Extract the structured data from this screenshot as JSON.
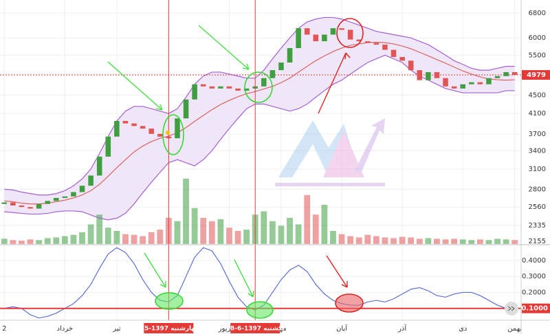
{
  "chart_data": [
    {
      "type": "candlestick",
      "categories": [
        "2",
        null,
        null,
        null,
        null,
        null,
        null,
        "خرداد",
        null,
        null,
        null,
        null,
        null,
        "تیر",
        null,
        null,
        null,
        null,
        null,
        null,
        null,
        null,
        null,
        null,
        null,
        null,
        "شهریور",
        null,
        null,
        null,
        null,
        null,
        "مهر",
        null,
        null,
        null,
        null,
        null,
        null,
        "آبان",
        null,
        null,
        null,
        null,
        null,
        null,
        "آذر",
        null,
        null,
        null,
        null,
        null,
        null,
        "دی",
        null,
        null,
        null,
        null,
        null,
        "بهمن"
      ],
      "open": [
        2600,
        2620,
        2580,
        2560,
        2540,
        2600,
        2640,
        2680,
        2700,
        2760,
        2850,
        3000,
        3300,
        3650,
        3950,
        3900,
        3850,
        3800,
        3700,
        3650,
        3620,
        4000,
        4400,
        4750,
        4700,
        4650,
        4700,
        4650,
        4600,
        4650,
        4700,
        4900,
        5100,
        5300,
        5700,
        6300,
        6100,
        5900,
        6100,
        6300,
        6250,
        5950,
        5900,
        5850,
        5800,
        5650,
        5450,
        5350,
        5100,
        4850,
        5050,
        4900,
        4700,
        4650,
        4750,
        4800,
        4750,
        4900,
        4950,
        5050
      ],
      "close": [
        2620,
        2580,
        2560,
        2540,
        2600,
        2640,
        2680,
        2700,
        2760,
        2850,
        3000,
        3300,
        3650,
        3950,
        3900,
        3850,
        3800,
        3700,
        3650,
        3620,
        4000,
        4400,
        4750,
        4700,
        4650,
        4700,
        4650,
        4600,
        4650,
        4700,
        4900,
        5100,
        5300,
        5700,
        6300,
        6100,
        5900,
        6100,
        6300,
        6250,
        5950,
        5900,
        5850,
        5800,
        5650,
        5450,
        5350,
        5100,
        4850,
        5050,
        4900,
        4700,
        4650,
        4750,
        4800,
        4750,
        4900,
        4950,
        5050,
        4979
      ],
      "up_color": "#3f9e3f",
      "down_color": "#e25555",
      "bands": {
        "upper": [
          2800,
          2790,
          2760,
          2740,
          2720,
          2720,
          2740,
          2780,
          2850,
          2950,
          3100,
          3350,
          3650,
          3950,
          4150,
          4250,
          4250,
          4200,
          4150,
          4100,
          4200,
          4450,
          4750,
          4950,
          5050,
          5050,
          5000,
          4950,
          4900,
          4900,
          5100,
          5400,
          5700,
          6000,
          6300,
          6500,
          6600,
          6650,
          6650,
          6600,
          6500,
          6400,
          6300,
          6200,
          6150,
          6100,
          6050,
          6000,
          5900,
          5800,
          5650,
          5500,
          5350,
          5250,
          5150,
          5100,
          5100,
          5150,
          5200,
          5200
        ],
        "middle": [
          2640,
          2630,
          2610,
          2600,
          2600,
          2610,
          2630,
          2650,
          2680,
          2720,
          2780,
          2870,
          2990,
          3120,
          3250,
          3380,
          3480,
          3560,
          3620,
          3660,
          3720,
          3820,
          3940,
          4060,
          4180,
          4290,
          4380,
          4460,
          4530,
          4580,
          4640,
          4700,
          4790,
          4900,
          5050,
          5200,
          5350,
          5480,
          5600,
          5700,
          5780,
          5820,
          5860,
          5870,
          5860,
          5820,
          5760,
          5680,
          5580,
          5480,
          5380,
          5280,
          5180,
          5080,
          5000,
          4930,
          4880,
          4860,
          4850,
          4860
        ],
        "lower": [
          2500,
          2490,
          2480,
          2470,
          2470,
          2480,
          2500,
          2510,
          2510,
          2500,
          2460,
          2420,
          2400,
          2420,
          2480,
          2600,
          2750,
          2900,
          3050,
          3200,
          3250,
          3200,
          3150,
          3250,
          3400,
          3600,
          3800,
          4000,
          4200,
          4300,
          4300,
          4250,
          4200,
          4150,
          4200,
          4300,
          4450,
          4600,
          4750,
          4850,
          5000,
          5150,
          5300,
          5400,
          5500,
          5400,
          5300,
          5100,
          4950,
          4850,
          4750,
          4650,
          4600,
          4550,
          4550,
          4550,
          4550,
          4550,
          4600,
          4600
        ],
        "band_color": "#a55fd6",
        "middle_color": "#e06060",
        "fill": "#efe6f7"
      },
      "volume": [
        8,
        6,
        5,
        7,
        6,
        9,
        10,
        12,
        14,
        18,
        30,
        45,
        25,
        20,
        15,
        14,
        12,
        18,
        22,
        40,
        35,
        100,
        55,
        40,
        35,
        38,
        25,
        20,
        22,
        45,
        50,
        35,
        28,
        40,
        30,
        75,
        45,
        60,
        20,
        15,
        12,
        10,
        14,
        12,
        10,
        9,
        11,
        10,
        8,
        9,
        8,
        7,
        8,
        7,
        6,
        7,
        6,
        8,
        7,
        6
      ],
      "log": true,
      "ylim": [
        2155,
        6800
      ],
      "yticks": [
        2155,
        2335,
        2560,
        2800,
        3100,
        3400,
        3700,
        4100,
        4500,
        5000,
        5500,
        6000,
        6800
      ],
      "last_price": 4979,
      "markers": [
        {
          "index": 19,
          "label": "چهارشنبه 1397-5-3"
        },
        {
          "index": 29,
          "label": "یکشنبه 1397-6-18"
        }
      ]
    },
    {
      "type": "line",
      "values": [
        0.1,
        0.11,
        0.1,
        0.06,
        0.04,
        0.05,
        0.07,
        0.1,
        0.13,
        0.18,
        0.25,
        0.35,
        0.44,
        0.48,
        0.45,
        0.38,
        0.28,
        0.2,
        0.15,
        0.14,
        0.18,
        0.3,
        0.42,
        0.48,
        0.46,
        0.38,
        0.27,
        0.17,
        0.11,
        0.09,
        0.12,
        0.2,
        0.28,
        0.34,
        0.37,
        0.33,
        0.25,
        0.19,
        0.15,
        0.13,
        0.12,
        0.12,
        0.14,
        0.15,
        0.14,
        0.16,
        0.19,
        0.22,
        0.23,
        0.21,
        0.18,
        0.17,
        0.19,
        0.2,
        0.2,
        0.18,
        0.15,
        0.12,
        0.1,
        0.1
      ],
      "color": "#5b6fd6",
      "ylim": [
        0.03,
        0.49
      ],
      "yticks": [
        {
          "value": 0.1,
          "label": "0.1000"
        },
        {
          "value": 0.2,
          "label": "0.2000"
        },
        {
          "value": 0.3,
          "label": "0.3000"
        },
        {
          "value": 0.4,
          "label": "0.4000"
        }
      ],
      "reference": {
        "value": 0.1,
        "label": "0.1000"
      }
    }
  ]
}
